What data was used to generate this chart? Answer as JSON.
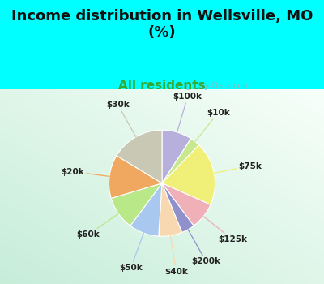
{
  "title": "Income distribution in Wellsville, MO\n(%)",
  "subtitle": "All residents",
  "title_color": "#111111",
  "subtitle_color": "#33aa33",
  "background_top": "#00ffff",
  "chart_bg_tl": "#f0faf8",
  "chart_bg_br": "#c8edd8",
  "watermark": "Ⓜ City-Data.com",
  "slices": [
    {
      "label": "$100k",
      "value": 9,
      "color": "#b8b0dc"
    },
    {
      "label": "$10k",
      "value": 3,
      "color": "#c8e890"
    },
    {
      "label": "$75k",
      "value": 19,
      "color": "#f0f078"
    },
    {
      "label": "$125k",
      "value": 8,
      "color": "#f0b0b8"
    },
    {
      "label": "$200k",
      "value": 4,
      "color": "#9090cc"
    },
    {
      "label": "$40k",
      "value": 7,
      "color": "#f8d8b0"
    },
    {
      "label": "$50k",
      "value": 9,
      "color": "#a8c8f0"
    },
    {
      "label": "$60k",
      "value": 10,
      "color": "#b8e888"
    },
    {
      "label": "$20k",
      "value": 13,
      "color": "#f0a860"
    },
    {
      "label": "$30k",
      "value": 16,
      "color": "#c8c8b4"
    }
  ],
  "figsize": [
    4.0,
    3.5
  ],
  "dpi": 100,
  "title_fontsize": 13,
  "subtitle_fontsize": 11
}
